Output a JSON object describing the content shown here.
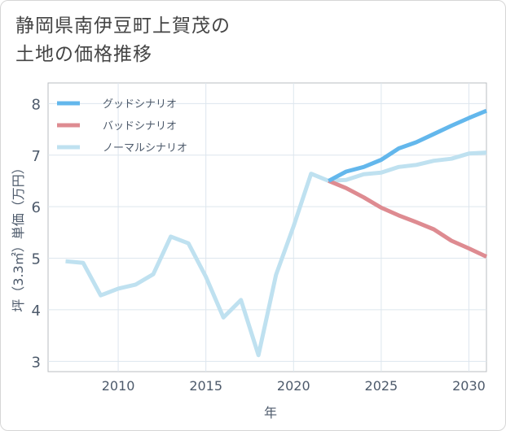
{
  "title": {
    "line1": "静岡県南伊豆町上賀茂の",
    "line2": "土地の価格推移"
  },
  "chart_data": {
    "type": "line",
    "xlabel": "年",
    "ylabel": "坪（3.3㎡）単価（万円）",
    "xlim": [
      2006,
      2031
    ],
    "ylim": [
      2.8,
      8.4
    ],
    "xticks": [
      2010,
      2015,
      2020,
      2025,
      2030
    ],
    "yticks": [
      3,
      4,
      5,
      6,
      7,
      8
    ],
    "grid": true,
    "legend_position": "top-left",
    "series": [
      {
        "name": "グッドシナリオ",
        "color": "#63b7ec",
        "x": [
          2022,
          2023,
          2024,
          2025,
          2026,
          2027,
          2028,
          2029,
          2030,
          2031
        ],
        "y": [
          6.5,
          6.68,
          6.77,
          6.91,
          7.13,
          7.25,
          7.41,
          7.57,
          7.72,
          7.86
        ]
      },
      {
        "name": "バッドシナリオ",
        "color": "#de8b91",
        "x": [
          2022,
          2023,
          2024,
          2025,
          2026,
          2027,
          2028,
          2029,
          2030,
          2031
        ],
        "y": [
          6.5,
          6.36,
          6.18,
          5.98,
          5.83,
          5.7,
          5.56,
          5.34,
          5.19,
          5.03
        ]
      },
      {
        "name": "ノーマルシナリオ",
        "color": "#bfe1f0",
        "x": [
          2007,
          2008,
          2009,
          2010,
          2011,
          2012,
          2013,
          2014,
          2015,
          2016,
          2017,
          2018,
          2019,
          2020,
          2021,
          2022,
          2023,
          2024,
          2025,
          2026,
          2027,
          2028,
          2029,
          2030,
          2031
        ],
        "y": [
          4.94,
          4.91,
          4.28,
          4.41,
          4.49,
          4.69,
          5.42,
          5.29,
          4.64,
          3.85,
          4.19,
          3.12,
          4.68,
          5.62,
          6.64,
          6.5,
          6.52,
          6.63,
          6.66,
          6.77,
          6.81,
          6.89,
          6.93,
          7.03,
          7.05
        ]
      }
    ]
  }
}
